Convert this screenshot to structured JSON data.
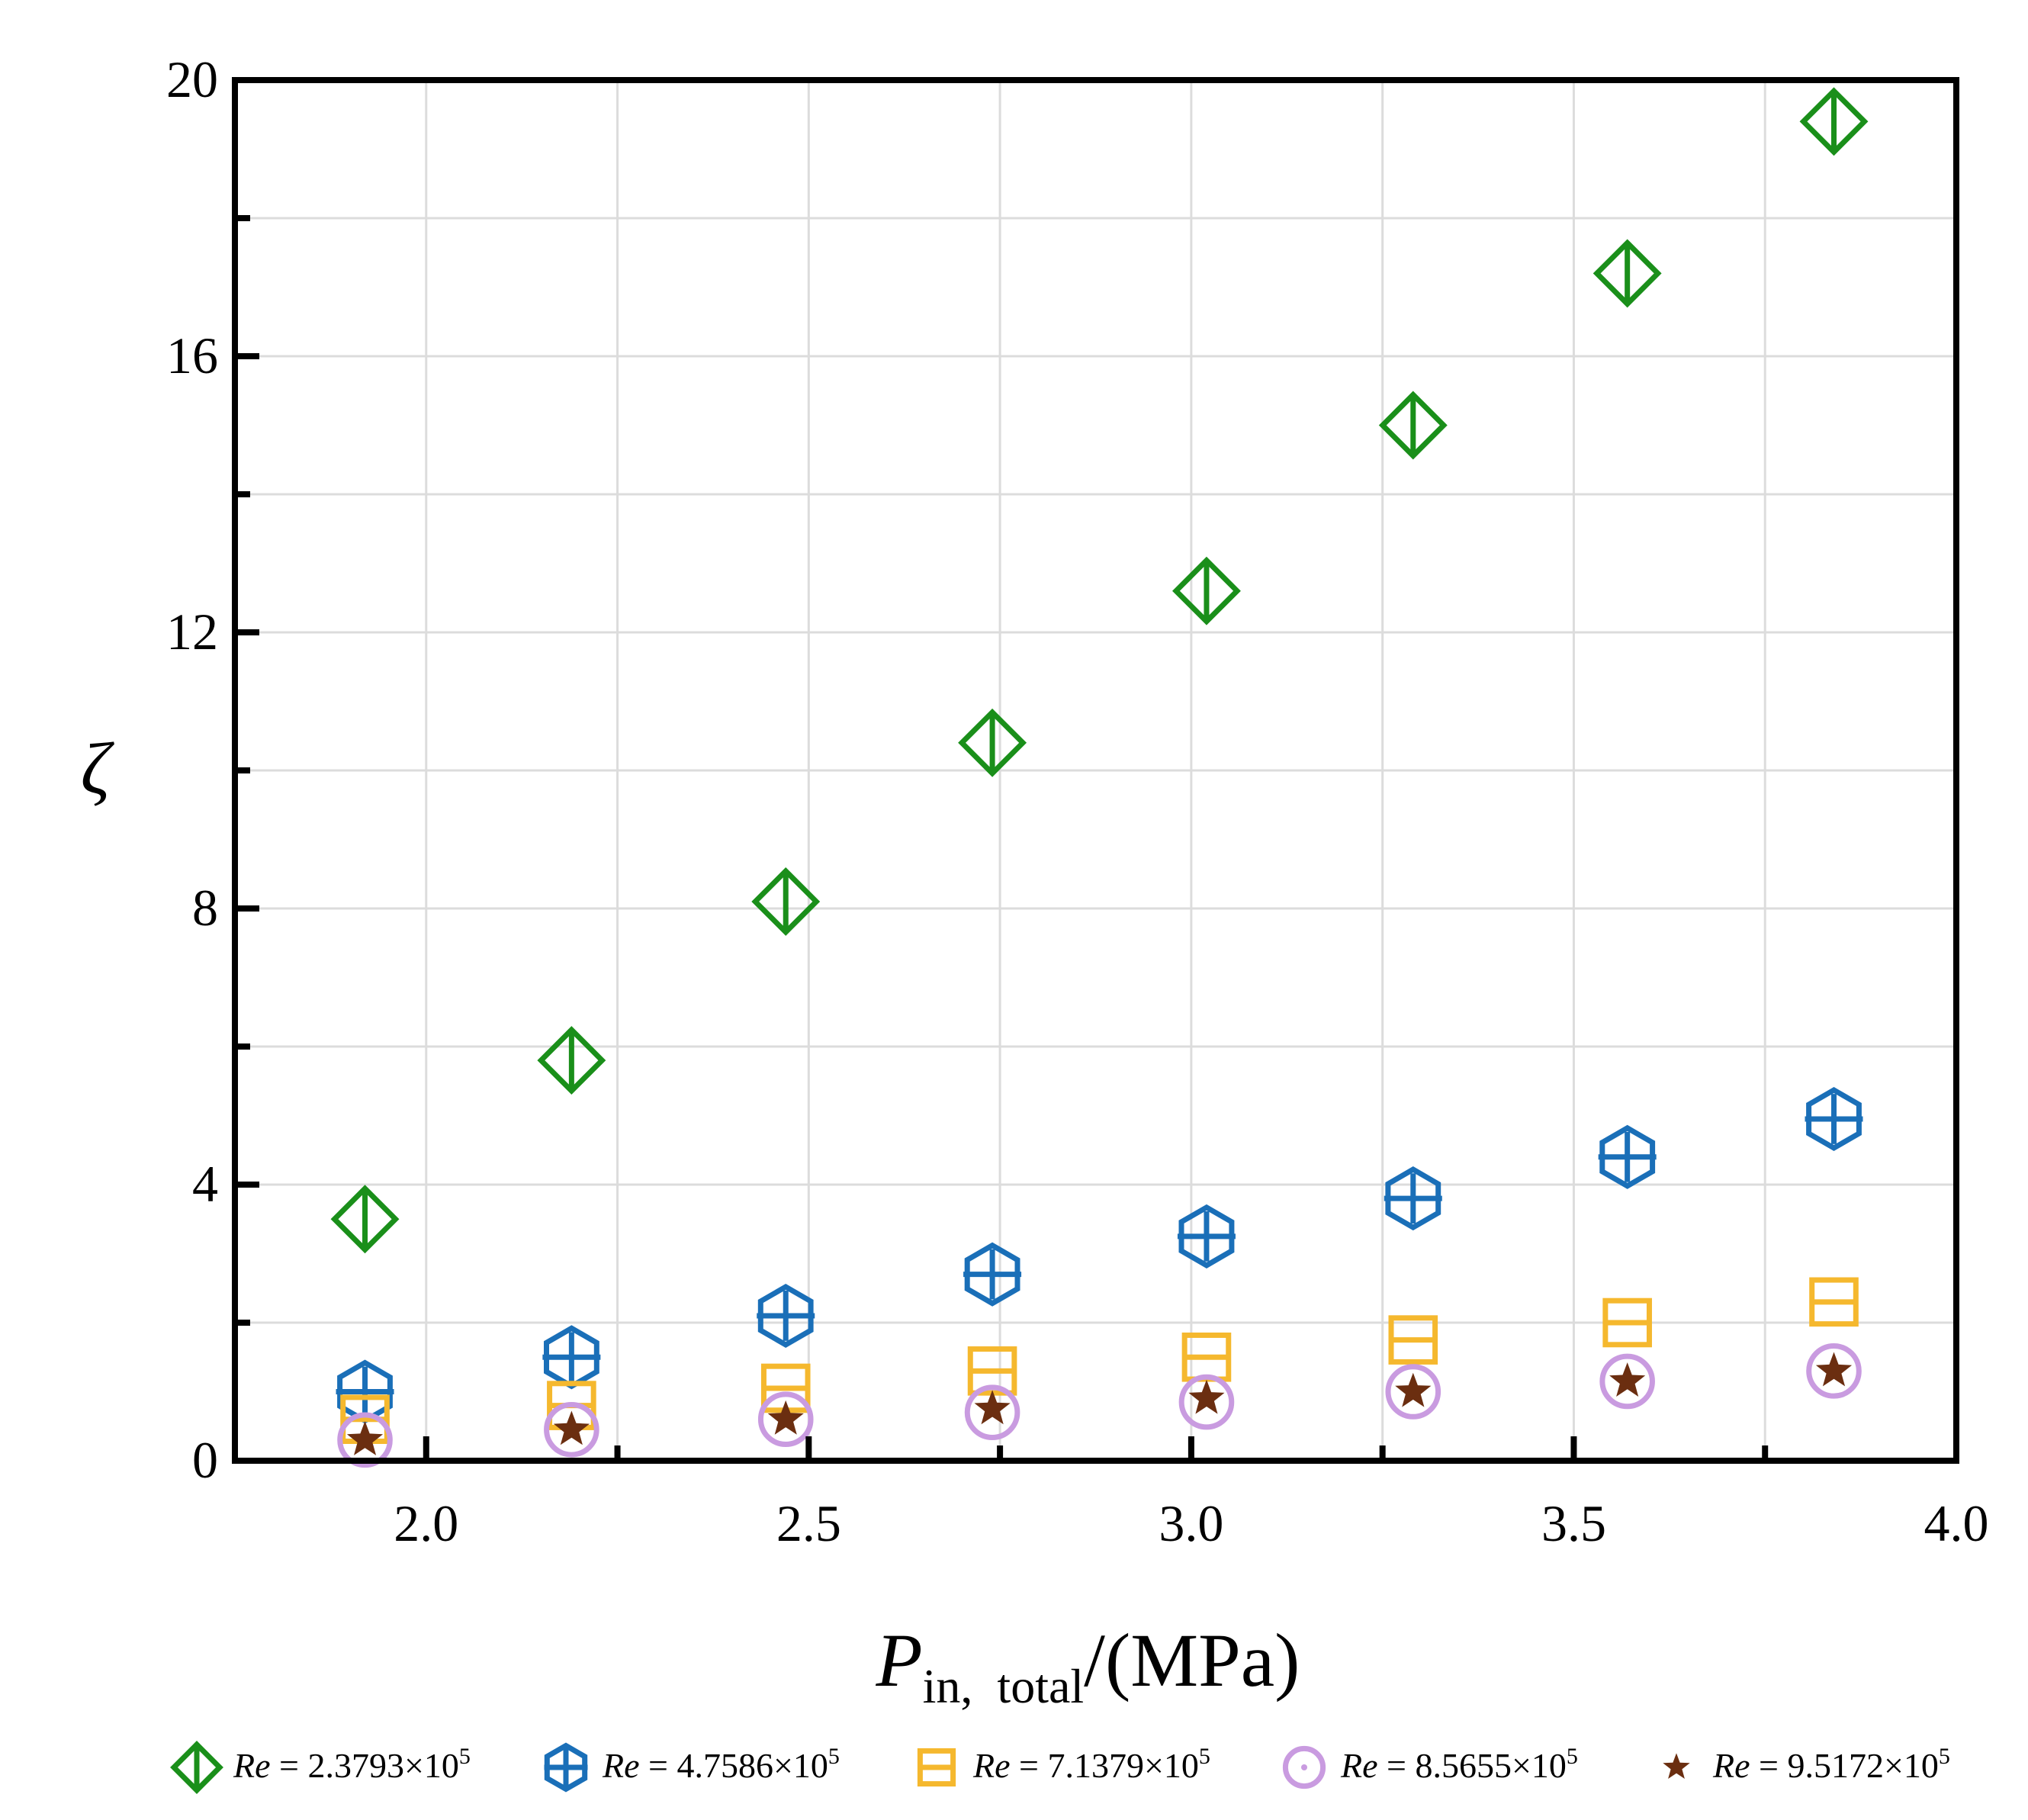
{
  "chart_data": {
    "type": "scatter",
    "xlabel": {
      "symbol": "P",
      "subscript": "in,  total",
      "unit": "/(MPa)"
    },
    "ylabel": "ζ",
    "xlim": [
      1.75,
      4.0
    ],
    "ylim": [
      0,
      20
    ],
    "x_ticks": [
      "2.0",
      "2.5",
      "3.0",
      "3.5",
      "4.0"
    ],
    "y_ticks": [
      "0",
      "4",
      "8",
      "12",
      "16",
      "20"
    ],
    "grid": true,
    "legend_position": "bottom",
    "x": [
      1.92,
      2.19,
      2.47,
      2.74,
      3.02,
      3.29,
      3.57,
      3.84
    ],
    "series": [
      {
        "name": "Re = 2.3793×10^5",
        "re_label": "Re",
        "value_label": " = 2.3793×10",
        "exponent": "5",
        "marker": "diamond-bar",
        "color": "#1a8f1a",
        "values": [
          3.5,
          5.8,
          8.1,
          10.4,
          12.6,
          15.0,
          17.2,
          19.4
        ]
      },
      {
        "name": "Re = 4.7586×10^5",
        "re_label": "Re",
        "value_label": " = 4.7586×10",
        "exponent": "5",
        "marker": "hexagon-plus",
        "color": "#1a6fb8",
        "values": [
          1.0,
          1.5,
          2.1,
          2.7,
          3.25,
          3.8,
          4.4,
          4.95
        ]
      },
      {
        "name": "Re = 7.1379×10^5",
        "re_label": "Re",
        "value_label": " = 7.1379×10",
        "exponent": "5",
        "marker": "square-bar",
        "color": "#f5b82e",
        "values": [
          0.6,
          0.8,
          1.05,
          1.3,
          1.5,
          1.75,
          2.0,
          2.3
        ]
      },
      {
        "name": "Re = 8.5655×10^5",
        "re_label": "Re",
        "value_label": " = 8.5655×10",
        "exponent": "5",
        "marker": "circle-dot",
        "color": "#c99be0",
        "values": [
          0.3,
          0.45,
          0.6,
          0.7,
          0.85,
          1.0,
          1.15,
          1.3
        ]
      },
      {
        "name": "Re = 9.5172×10^5",
        "re_label": "Re",
        "value_label": " = 9.5172×10",
        "exponent": "5",
        "marker": "star",
        "color": "#6b2e10",
        "values": [
          0.3,
          0.45,
          0.6,
          0.75,
          0.9,
          1.0,
          1.15,
          1.3
        ]
      }
    ]
  }
}
